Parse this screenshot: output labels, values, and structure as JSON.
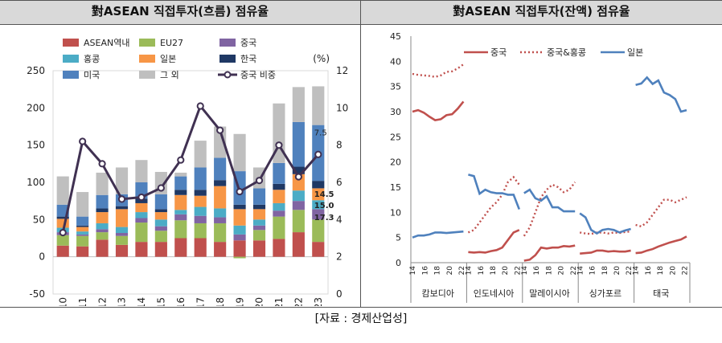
{
  "titles": {
    "left": "對ASEAN 직접투자(흐름) 점유율",
    "right": "對ASEAN 직접투자(잔액) 점유율"
  },
  "source": "[자료 : 경제산업성]",
  "colors": {
    "ASEAN역내": "#c0504d",
    "EU27": "#9bbb59",
    "중국": "#8064a2",
    "홍콩": "#4bacc6",
    "일본": "#f79646",
    "한국": "#1f3864",
    "미국": "#4f81bd",
    "그 외": "#bfbfbf",
    "중국 비중": "#403152",
    "china_line": "#c0504d",
    "japan_line": "#4f81bd"
  },
  "chart_data": [
    {
      "type": "bar",
      "stacked": true,
      "categories": [
        "2010",
        "2011",
        "2012",
        "2013",
        "2014",
        "2015",
        "2016",
        "2017",
        "2018",
        "2019",
        "2020",
        "2021",
        "2022",
        "2023"
      ],
      "ylim": [
        -50,
        250
      ],
      "yticks": [
        -50,
        0,
        50,
        100,
        150,
        200,
        250
      ],
      "y2lim": [
        0,
        12
      ],
      "y2ticks": [
        0,
        2,
        4,
        6,
        8,
        10,
        12
      ],
      "y2label": "(%)",
      "legend": [
        "ASEAN역내",
        "EU27",
        "중국",
        "홍콩",
        "일본",
        "한국",
        "미국",
        "그 외",
        "중국 비중"
      ],
      "series": [
        {
          "name": "ASEAN역내",
          "values": [
            15,
            14,
            23,
            16,
            20,
            20,
            25,
            25,
            20,
            22,
            22,
            24,
            33,
            20
          ]
        },
        {
          "name": "EU27",
          "values": [
            14,
            14,
            10,
            12,
            26,
            15,
            24,
            20,
            25,
            -2,
            14,
            30,
            30,
            30
          ]
        },
        {
          "name": "중국",
          "values": [
            4,
            2,
            4,
            4,
            6,
            6,
            8,
            10,
            8,
            8,
            6,
            8,
            12,
            14
          ]
        },
        {
          "name": "홍콩",
          "values": [
            6,
            4,
            8,
            8,
            8,
            9,
            6,
            12,
            12,
            12,
            8,
            10,
            14,
            12
          ]
        },
        {
          "name": "일본",
          "values": [
            12,
            6,
            15,
            24,
            12,
            10,
            20,
            15,
            30,
            22,
            14,
            18,
            22,
            16
          ]
        },
        {
          "name": "한국",
          "values": [
            3,
            2,
            5,
            4,
            6,
            4,
            7,
            8,
            8,
            6,
            6,
            8,
            10,
            10
          ]
        },
        {
          "name": "미국",
          "values": [
            16,
            12,
            18,
            16,
            22,
            20,
            18,
            30,
            30,
            45,
            22,
            28,
            60,
            75
          ]
        },
        {
          "name": "그 외",
          "values": [
            38,
            33,
            30,
            36,
            30,
            30,
            5,
            36,
            42,
            50,
            28,
            80,
            47,
            52
          ]
        },
        {
          "name": "중국 비중",
          "type": "line",
          "axis": "y2",
          "values": [
            3.3,
            8.2,
            7.0,
            5.1,
            5.2,
            5.7,
            7.2,
            10.1,
            8.8,
            5.5,
            6.1,
            8.0,
            6.3,
            7.5
          ]
        }
      ],
      "annotations": [
        "7.5",
        "14.5",
        "15.0",
        "17.3"
      ]
    },
    {
      "type": "line",
      "ylim": [
        0,
        45
      ],
      "yticks": [
        0,
        5,
        10,
        15,
        20,
        25,
        30,
        35,
        40,
        45
      ],
      "groups": [
        "캄보디아",
        "인도네시아",
        "말레이시아",
        "싱가포르",
        "태국"
      ],
      "x_tick_labels": [
        "14",
        "16",
        "18",
        "20",
        "22"
      ],
      "legend": [
        "중국",
        "중국&홍콩",
        "일본"
      ],
      "series": [
        {
          "name": "중국",
          "group": "캄보디아",
          "values": [
            30.0,
            30.3,
            29.8,
            29.0,
            28.3,
            28.5,
            29.3,
            29.5,
            30.6,
            32.0
          ]
        },
        {
          "name": "중국&홍콩",
          "group": "캄보디아",
          "values": [
            37.5,
            37.3,
            37.2,
            37.1,
            36.9,
            37.2,
            37.9,
            38.0,
            38.6,
            39.4
          ]
        },
        {
          "name": "일본",
          "group": "캄보디아",
          "values": [
            5.0,
            5.4,
            5.4,
            5.6,
            6.0,
            6.0,
            5.9,
            6.0,
            6.1,
            6.2
          ]
        },
        {
          "name": "중국",
          "group": "인도네시아",
          "values": [
            2.1,
            2.0,
            2.1,
            2.0,
            2.3,
            2.5,
            3.0,
            4.5,
            6.0,
            6.5
          ]
        },
        {
          "name": "중국&홍콩",
          "group": "인도네시아",
          "values": [
            6.0,
            6.5,
            8.0,
            9.5,
            11.0,
            12.0,
            13.5,
            16.0,
            17.0,
            15.5
          ]
        },
        {
          "name": "일본",
          "group": "인도네시아",
          "values": [
            17.5,
            17.2,
            13.7,
            14.5,
            14.0,
            13.8,
            13.8,
            13.5,
            13.5,
            10.6
          ]
        },
        {
          "name": "중국",
          "group": "말레이시아",
          "values": [
            0.4,
            0.6,
            1.5,
            3.0,
            2.8,
            3.0,
            3.0,
            3.3,
            3.2,
            3.4
          ]
        },
        {
          "name": "중국&홍콩",
          "group": "말레이시아",
          "values": [
            5.3,
            7.0,
            10.0,
            13.0,
            14.5,
            15.5,
            15.0,
            14.0,
            14.5,
            16.0
          ]
        },
        {
          "name": "일본",
          "group": "말레이시아",
          "values": [
            13.8,
            14.5,
            12.8,
            12.3,
            13.2,
            11.0,
            11.0,
            10.2,
            10.2,
            10.2
          ]
        },
        {
          "name": "중국",
          "group": "싱가포르",
          "values": [
            1.8,
            1.9,
            2.0,
            2.4,
            2.4,
            2.2,
            2.3,
            2.2,
            2.2,
            2.4
          ]
        },
        {
          "name": "중국&홍콩",
          "group": "싱가포르",
          "values": [
            6.0,
            5.8,
            5.7,
            6.0,
            6.0,
            5.8,
            6.0,
            5.9,
            6.1,
            6.2
          ]
        },
        {
          "name": "일본",
          "group": "싱가포르",
          "values": [
            9.8,
            9.0,
            6.5,
            5.8,
            6.5,
            6.7,
            6.5,
            6.0,
            6.4,
            6.7
          ]
        },
        {
          "name": "중국",
          "group": "태국",
          "values": [
            1.9,
            2.0,
            2.4,
            2.7,
            3.2,
            3.6,
            4.0,
            4.3,
            4.6,
            5.2
          ]
        },
        {
          "name": "중국&홍콩",
          "group": "태국",
          "values": [
            7.5,
            7.2,
            8.0,
            9.5,
            11.0,
            12.5,
            12.5,
            12.0,
            12.5,
            13.0
          ]
        },
        {
          "name": "일본",
          "group": "태국",
          "values": [
            35.3,
            35.6,
            36.8,
            35.5,
            36.2,
            33.8,
            33.3,
            32.5,
            30.0,
            30.3
          ]
        }
      ]
    }
  ]
}
